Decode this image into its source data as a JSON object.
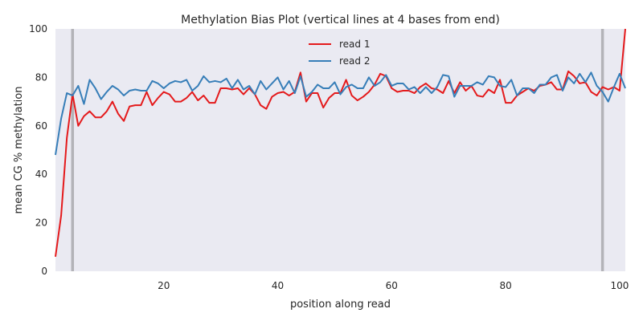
{
  "chart_data": {
    "type": "line",
    "title": "Methylation Bias Plot (vertical lines at 4 bases from end)",
    "xlabel": "position along read",
    "ylabel": "mean CG % methylation",
    "xlim": [
      1,
      101
    ],
    "ylim": [
      0,
      100
    ],
    "xticks": [
      20,
      40,
      60,
      80,
      100
    ],
    "yticks": [
      0,
      20,
      40,
      60,
      80,
      100
    ],
    "grid": false,
    "legend_position": "top-center",
    "vertical_lines": [
      4,
      97
    ],
    "x": [
      1,
      2,
      3,
      4,
      5,
      6,
      7,
      8,
      9,
      10,
      11,
      12,
      13,
      14,
      15,
      16,
      17,
      18,
      19,
      20,
      21,
      22,
      23,
      24,
      25,
      26,
      27,
      28,
      29,
      30,
      31,
      32,
      33,
      34,
      35,
      36,
      37,
      38,
      39,
      40,
      41,
      42,
      43,
      44,
      45,
      46,
      47,
      48,
      49,
      50,
      51,
      52,
      53,
      54,
      55,
      56,
      57,
      58,
      59,
      60,
      61,
      62,
      63,
      64,
      65,
      66,
      67,
      68,
      69,
      70,
      71,
      72,
      73,
      74,
      75,
      76,
      77,
      78,
      79,
      80,
      81,
      82,
      83,
      84,
      85,
      86,
      87,
      88,
      89,
      90,
      91,
      92,
      93,
      94,
      95,
      96,
      97,
      98,
      99,
      100,
      101
    ],
    "series": [
      {
        "name": "read 1",
        "color": "#e41a1c",
        "values": [
          6,
          23,
          55,
          73,
          60,
          64,
          66,
          63.5,
          63.5,
          66,
          70,
          65,
          62,
          68,
          68.5,
          68.5,
          74,
          68.5,
          71.5,
          74,
          73,
          70,
          70,
          71.5,
          74,
          70.5,
          72.5,
          69.5,
          69.5,
          75.5,
          75.5,
          75,
          75.5,
          73,
          75.5,
          73,
          68.5,
          67,
          72,
          73.5,
          74,
          72.5,
          74,
          82,
          70,
          73.5,
          73.5,
          67.5,
          71.5,
          73.5,
          73.5,
          79,
          72.5,
          70.5,
          72,
          74,
          77,
          81.5,
          80.5,
          75.5,
          74,
          74.5,
          74.5,
          73.5,
          76,
          77.5,
          75.5,
          75,
          73.5,
          78.5,
          73.5,
          78,
          74.5,
          76.5,
          72.5,
          72,
          75,
          73.5,
          79,
          69.5,
          69.5,
          72.5,
          74,
          75.5,
          74.5,
          76.5,
          77,
          78,
          75,
          75,
          82.5,
          80.5,
          77.5,
          78,
          74,
          72.5,
          76,
          75,
          76,
          74.5,
          100
        ]
      },
      {
        "name": "read 2",
        "color": "#377eb8",
        "values": [
          48,
          63,
          73.5,
          72.5,
          76.5,
          69,
          79,
          75.5,
          71,
          74,
          76.5,
          75,
          72.5,
          74.5,
          75,
          74.5,
          74.5,
          78.5,
          77.5,
          75.5,
          77.5,
          78.5,
          78,
          79,
          74.5,
          76.5,
          80.5,
          78,
          78.5,
          78,
          79.5,
          75.5,
          79,
          75,
          76.5,
          73,
          78.5,
          75,
          77.5,
          80,
          75,
          78.5,
          73.5,
          80.5,
          72,
          74,
          77,
          75.5,
          75.5,
          78,
          73,
          76,
          77,
          75.5,
          75.5,
          80,
          76.5,
          78,
          81,
          76.5,
          77.5,
          77.5,
          75,
          76,
          73.5,
          76,
          73.5,
          76,
          81,
          80.5,
          72,
          76.5,
          76.5,
          76.5,
          78,
          77,
          80.5,
          80,
          76.5,
          76,
          79,
          72.5,
          75.5,
          75.5,
          73.5,
          77,
          77,
          80,
          81,
          74.5,
          80,
          77.5,
          81.5,
          78,
          82,
          76.5,
          74,
          70,
          76,
          81.5,
          75.5
        ]
      }
    ]
  }
}
